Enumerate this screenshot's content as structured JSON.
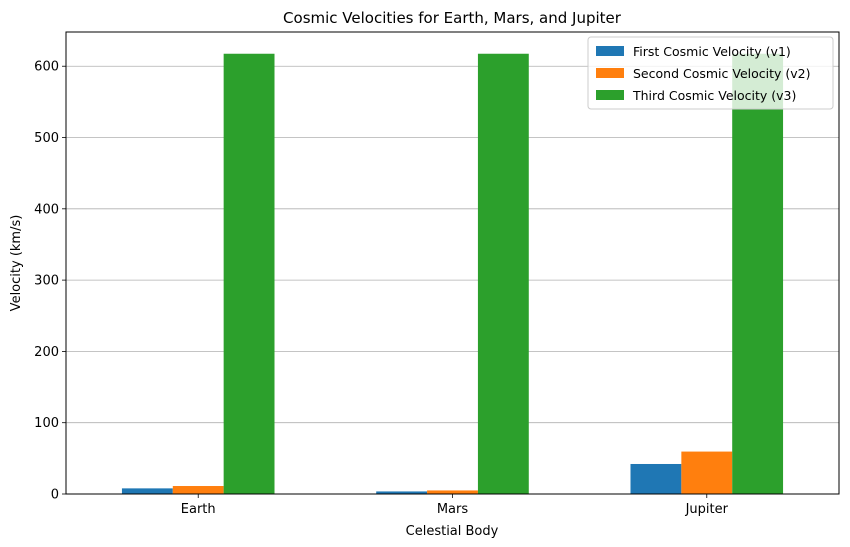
{
  "chart_data": {
    "type": "bar",
    "title": "Cosmic Velocities for Earth, Mars, and Jupiter",
    "xlabel": "Celestial Body",
    "ylabel": "Velocity (km/s)",
    "categories": [
      "Earth",
      "Mars",
      "Jupiter"
    ],
    "series": [
      {
        "name": "First Cosmic Velocity (v1)",
        "color": "#1f77b4",
        "values": [
          7.9,
          3.6,
          42.1
        ]
      },
      {
        "name": "Second Cosmic Velocity (v2)",
        "color": "#ff7f0e",
        "values": [
          11.2,
          5.0,
          59.5
        ]
      },
      {
        "name": "Third Cosmic Velocity (v3)",
        "color": "#2ca02c",
        "values": [
          617.5,
          617.5,
          617.5
        ]
      }
    ],
    "ylim": [
      0,
      648
    ],
    "yticks": [
      0,
      100,
      200,
      300,
      400,
      500,
      600
    ],
    "grid": "y",
    "legend_position": "top-right"
  }
}
